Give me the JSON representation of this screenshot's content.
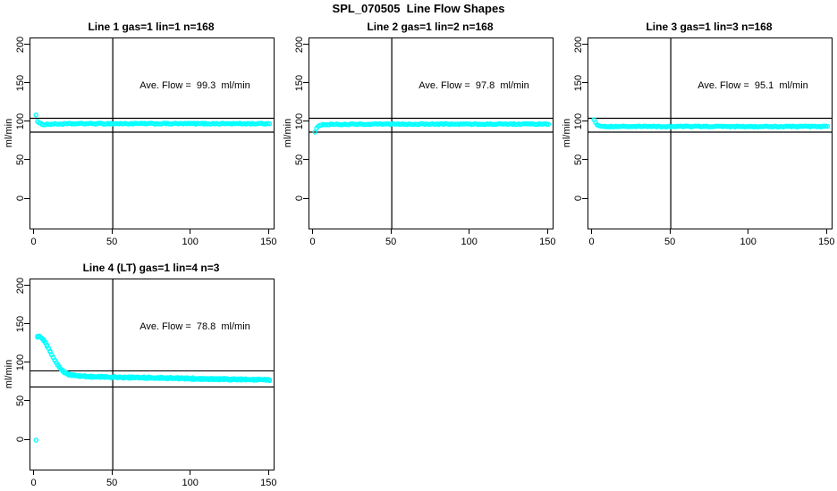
{
  "main_title": "SPL_070505  Line Flow Shapes",
  "colors": {
    "marker": "#00FFFF",
    "reference_lines": "#000000",
    "text": "#000000",
    "background": "#FFFFFF"
  },
  "axes": {
    "x_ticks": [
      "0",
      "50",
      "100",
      "150"
    ],
    "y_ticks": [
      "0",
      "50",
      "100",
      "150",
      "200"
    ],
    "ylabel": "ml/min"
  },
  "chart_data": [
    {
      "type": "scatter",
      "title": "Line 1 gas=1 lin=1 n=168",
      "n": 168,
      "annotation": "Ave. Flow =  99.3  ml/min",
      "ave_flow_ml_min": 99.3,
      "ylabel": "ml/min",
      "x_ticks": [
        0,
        50,
        100,
        150
      ],
      "y_ticks": [
        0,
        50,
        100,
        150,
        200
      ],
      "xlim": [
        -2.5,
        152.5
      ],
      "ylim": [
        -38,
        209
      ],
      "vline_x": 50,
      "hlines_y": [
        105,
        87
      ],
      "marker": "open-circle",
      "marker_color": "#00FFFF",
      "series": [
        {
          "name": "flow",
          "runs": 1,
          "jitter": 0.7,
          "x_max": 150,
          "keypoints": [
            [
              1,
              110
            ],
            [
              2,
              100.5
            ],
            [
              3,
              98.5
            ],
            [
              6,
              97
            ],
            [
              12,
              97.5
            ],
            [
              30,
              98
            ],
            [
              150,
              98
            ]
          ]
        }
      ],
      "isolated_points": []
    },
    {
      "type": "scatter",
      "title": "Line 2 gas=1 lin=2 n=168",
      "n": 168,
      "annotation": "Ave. Flow =  97.8  ml/min",
      "ave_flow_ml_min": 97.8,
      "ylabel": "ml/min",
      "x_ticks": [
        0,
        50,
        100,
        150
      ],
      "y_ticks": [
        0,
        50,
        100,
        150,
        200
      ],
      "xlim": [
        -2.5,
        152.5
      ],
      "ylim": [
        -38,
        209
      ],
      "vline_x": 50,
      "hlines_y": [
        105,
        87
      ],
      "marker": "open-circle",
      "marker_color": "#00FFFF",
      "series": [
        {
          "name": "flow",
          "runs": 1,
          "jitter": 0.6,
          "x_max": 150,
          "keypoints": [
            [
              1,
              87.5
            ],
            [
              2,
              92
            ],
            [
              3,
              95
            ],
            [
              5,
              96.5
            ],
            [
              10,
              97
            ],
            [
              30,
              97.3
            ],
            [
              150,
              97.5
            ]
          ]
        }
      ],
      "isolated_points": []
    },
    {
      "type": "scatter",
      "title": "Line 3 gas=1 lin=3 n=168",
      "n": 168,
      "annotation": "Ave. Flow =  95.1  ml/min",
      "ave_flow_ml_min": 95.1,
      "ylabel": "ml/min",
      "x_ticks": [
        0,
        50,
        100,
        150
      ],
      "y_ticks": [
        0,
        50,
        100,
        150,
        200
      ],
      "xlim": [
        -2.5,
        152.5
      ],
      "ylim": [
        -38,
        209
      ],
      "vline_x": 50,
      "hlines_y": [
        105,
        87
      ],
      "marker": "open-circle",
      "marker_color": "#00FFFF",
      "series": [
        {
          "name": "flow",
          "runs": 1,
          "jitter": 0.6,
          "x_max": 150,
          "keypoints": [
            [
              1,
              103.5
            ],
            [
              2,
              99
            ],
            [
              3,
              96.5
            ],
            [
              5,
              95
            ],
            [
              10,
              94.3
            ],
            [
              150,
              94.3
            ]
          ]
        }
      ],
      "isolated_points": []
    },
    {
      "type": "scatter",
      "title": "Line 4 (LT) gas=1 lin=4 n=3",
      "n": 3,
      "annotation": "Ave. Flow =  78.8  ml/min",
      "ave_flow_ml_min": 78.8,
      "ylabel": "ml/min",
      "x_ticks": [
        0,
        50,
        100,
        150
      ],
      "y_ticks": [
        0,
        50,
        100,
        150,
        200
      ],
      "xlim": [
        -2.5,
        152.5
      ],
      "ylim": [
        -38,
        209
      ],
      "vline_x": 50,
      "hlines_y": [
        90,
        69
      ],
      "marker": "open-circle",
      "marker_color": "#00FFFF",
      "series": [
        {
          "name": "flow",
          "runs": 2,
          "jitter": 0.7,
          "x_max": 150,
          "keypoints": [
            [
              2,
              134
            ],
            [
              3,
              135
            ],
            [
              4,
              134
            ],
            [
              5,
              132
            ],
            [
              6,
              129.5
            ],
            [
              7,
              126.5
            ],
            [
              8,
              123
            ],
            [
              9,
              119
            ],
            [
              10,
              115
            ],
            [
              11,
              111
            ],
            [
              12,
              107.5
            ],
            [
              13,
              104
            ],
            [
              14,
              100.5
            ],
            [
              15,
              97.5
            ],
            [
              16,
              94.5
            ],
            [
              17,
              92
            ],
            [
              18,
              90
            ],
            [
              19,
              88.5
            ],
            [
              20,
              87
            ],
            [
              22,
              85.3
            ],
            [
              24,
              84.3
            ],
            [
              27,
              83.5
            ],
            [
              30,
              83
            ],
            [
              35,
              82.5
            ],
            [
              40,
              82.2
            ],
            [
              50,
              81.8
            ],
            [
              60,
              81.4
            ],
            [
              75,
              81
            ],
            [
              90,
              80.4
            ],
            [
              105,
              79.8
            ],
            [
              120,
              79.2
            ],
            [
              135,
              78.7
            ],
            [
              150,
              78.3
            ]
          ]
        }
      ],
      "isolated_points": [
        [
          1,
          0
        ]
      ]
    }
  ]
}
